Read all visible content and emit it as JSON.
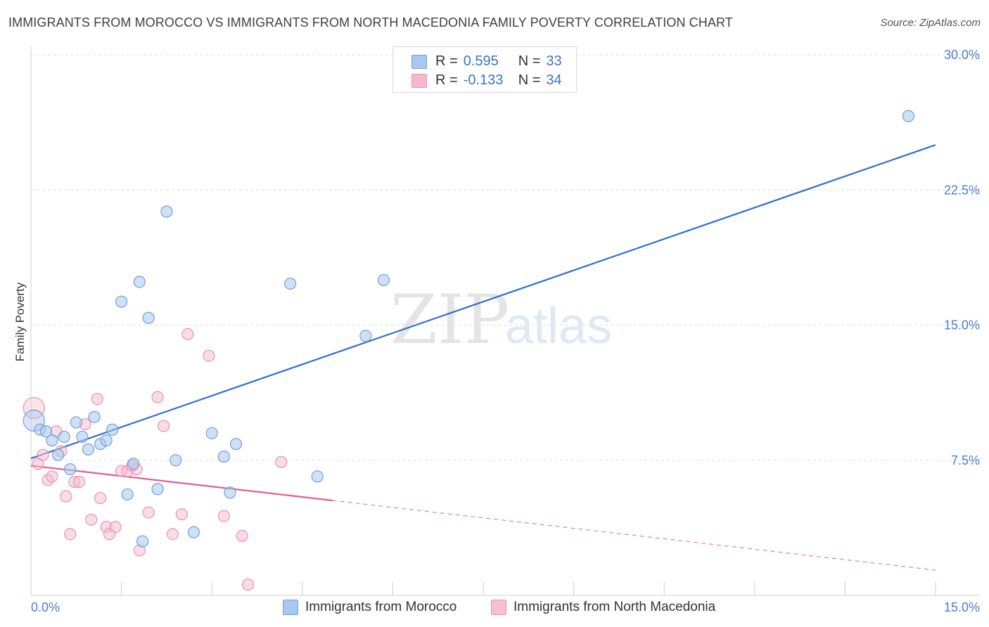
{
  "header": {
    "title": "IMMIGRANTS FROM MOROCCO VS IMMIGRANTS FROM NORTH MACEDONIA FAMILY POVERTY CORRELATION CHART",
    "source": "Source: ZipAtlas.com"
  },
  "watermark": {
    "zip": "ZIP",
    "atlas": "atlas"
  },
  "legend": {
    "rows": [
      {
        "r_label": "R =",
        "r_value": "0.595",
        "n_label": "N =",
        "n_value": "33",
        "color": "#a9c8f0"
      },
      {
        "r_label": "R =",
        "r_value": "-0.133",
        "n_label": "N =",
        "n_value": "34",
        "color": "#f6b8cb"
      }
    ]
  },
  "colors": {
    "morocco_fill": "#a9c8f0",
    "morocco_stroke": "#6f9fdc",
    "morocco_line": "#2f6fd0",
    "macedonia_fill": "#f6c0d0",
    "macedonia_stroke": "#e893ae",
    "macedonia_line": "#e0608c",
    "grid": "#dcdcdc",
    "axis_text": "#4a7fd0"
  },
  "chart_data": {
    "type": "scatter",
    "title": "IMMIGRANTS FROM MOROCCO VS IMMIGRANTS FROM NORTH MACEDONIA FAMILY POVERTY CORRELATION CHART",
    "xlabel": "",
    "ylabel": "Family Poverty",
    "xlim": [
      0,
      15
    ],
    "ylim": [
      0,
      30
    ],
    "x_tick_labels": [
      "0.0%",
      "15.0%"
    ],
    "y_ticks": [
      7.5,
      15.0,
      22.5,
      30.0
    ],
    "y_tick_labels": [
      "7.5%",
      "15.0%",
      "22.5%",
      "30.0%"
    ],
    "legend_position": "top-center",
    "series": [
      {
        "name": "Immigrants from Morocco",
        "r": 0.595,
        "n": 33,
        "trend": {
          "x0": 0,
          "y0": 7.6,
          "x1": 15,
          "y1": 25.0,
          "dashed_from": null
        },
        "points": [
          [
            0.05,
            9.7
          ],
          [
            0.15,
            9.2
          ],
          [
            0.25,
            9.1
          ],
          [
            0.35,
            8.6
          ],
          [
            0.45,
            7.8
          ],
          [
            0.55,
            8.8
          ],
          [
            0.65,
            7.0
          ],
          [
            0.75,
            9.6
          ],
          [
            0.85,
            8.8
          ],
          [
            0.95,
            8.1
          ],
          [
            1.05,
            9.9
          ],
          [
            1.15,
            8.4
          ],
          [
            1.25,
            8.6
          ],
          [
            1.35,
            9.2
          ],
          [
            1.5,
            16.3
          ],
          [
            1.6,
            5.6
          ],
          [
            1.7,
            7.3
          ],
          [
            1.8,
            17.4
          ],
          [
            1.85,
            3.0
          ],
          [
            1.95,
            15.4
          ],
          [
            2.1,
            5.9
          ],
          [
            2.25,
            21.3
          ],
          [
            2.4,
            7.5
          ],
          [
            2.7,
            3.5
          ],
          [
            3.0,
            9.0
          ],
          [
            3.2,
            7.7
          ],
          [
            3.3,
            5.7
          ],
          [
            3.4,
            8.4
          ],
          [
            4.3,
            17.3
          ],
          [
            4.75,
            6.6
          ],
          [
            5.55,
            14.4
          ],
          [
            5.85,
            17.5
          ],
          [
            14.55,
            26.6
          ]
        ]
      },
      {
        "name": "Immigrants from North Macedonia",
        "r": -0.133,
        "n": 34,
        "trend": {
          "x0": 0,
          "y0": 7.2,
          "x1": 15,
          "y1": 1.4,
          "dashed_from": 5.0
        },
        "points": [
          [
            0.05,
            10.4
          ],
          [
            0.12,
            7.3
          ],
          [
            0.2,
            7.8
          ],
          [
            0.28,
            6.4
          ],
          [
            0.35,
            6.6
          ],
          [
            0.42,
            9.1
          ],
          [
            0.5,
            8.0
          ],
          [
            0.58,
            5.5
          ],
          [
            0.65,
            3.4
          ],
          [
            0.72,
            6.3
          ],
          [
            0.8,
            6.3
          ],
          [
            0.9,
            9.5
          ],
          [
            1.0,
            4.2
          ],
          [
            1.1,
            10.9
          ],
          [
            1.15,
            5.4
          ],
          [
            1.25,
            3.8
          ],
          [
            1.3,
            3.4
          ],
          [
            1.4,
            3.8
          ],
          [
            1.5,
            6.9
          ],
          [
            1.6,
            6.9
          ],
          [
            1.68,
            7.2
          ],
          [
            1.75,
            7.0
          ],
          [
            1.8,
            2.5
          ],
          [
            1.95,
            4.6
          ],
          [
            2.1,
            11.0
          ],
          [
            2.2,
            9.4
          ],
          [
            2.35,
            3.4
          ],
          [
            2.5,
            4.5
          ],
          [
            2.6,
            14.5
          ],
          [
            2.95,
            13.3
          ],
          [
            3.2,
            4.4
          ],
          [
            3.5,
            3.3
          ],
          [
            3.6,
            0.6
          ],
          [
            4.15,
            7.4
          ]
        ]
      }
    ]
  },
  "bottom_legend": {
    "morocco_label": "Immigrants from Morocco",
    "macedonia_label": "Immigrants from North Macedonia"
  }
}
